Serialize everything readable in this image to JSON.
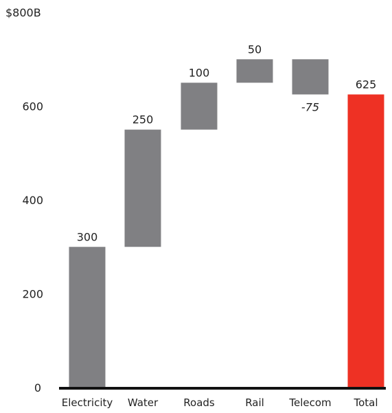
{
  "chart_data": {
    "type": "bar",
    "subtype": "waterfall",
    "title": "",
    "xlabel": "",
    "ylabel": "",
    "y_tick_labels": [
      "0",
      "200",
      "400",
      "600",
      "$800B"
    ],
    "y_ticks": [
      0,
      200,
      400,
      600,
      800
    ],
    "ylim": [
      0,
      800
    ],
    "grid": false,
    "categories": [
      "Electricity",
      "Water",
      "Roads",
      "Rail",
      "Telecom",
      "Total"
    ],
    "values": [
      300,
      250,
      100,
      50,
      -75,
      625
    ],
    "value_labels": [
      "300",
      "250",
      "100",
      "50",
      "-75",
      "625"
    ],
    "is_total": [
      false,
      false,
      false,
      false,
      false,
      true
    ],
    "colors": {
      "increment": "#808083",
      "total": "#ee3124",
      "baseline": "#111111"
    }
  }
}
